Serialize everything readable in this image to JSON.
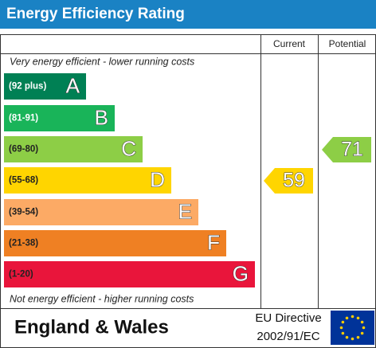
{
  "header": {
    "title": "Energy Efficiency Rating"
  },
  "columns": {
    "current": "Current",
    "potential": "Potential"
  },
  "top_note": "Very energy efficient - lower running costs",
  "bottom_note": "Not energy efficient - higher running costs",
  "bands": [
    {
      "range": "(92 plus)",
      "letter": "A",
      "color": "#008054",
      "text_color": "#ffffff"
    },
    {
      "range": "(81-91)",
      "letter": "B",
      "color": "#19b459",
      "text_color": "#ffffff"
    },
    {
      "range": "(69-80)",
      "letter": "C",
      "color": "#8dce46",
      "text_color": "#222222"
    },
    {
      "range": "(55-68)",
      "letter": "D",
      "color": "#ffd500",
      "text_color": "#222222"
    },
    {
      "range": "(39-54)",
      "letter": "E",
      "color": "#fcaa65",
      "text_color": "#222222"
    },
    {
      "range": "(21-38)",
      "letter": "F",
      "color": "#ef8023",
      "text_color": "#222222"
    },
    {
      "range": "(1-20)",
      "letter": "G",
      "color": "#e9153b",
      "text_color": "#222222"
    }
  ],
  "current": 59,
  "potential": 71,
  "footer": {
    "region": "England & Wales",
    "directive_line1": "EU Directive",
    "directive_line2": "2002/91/EC"
  }
}
